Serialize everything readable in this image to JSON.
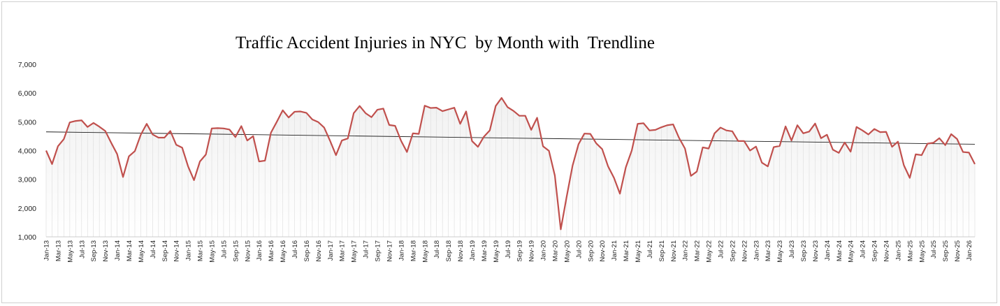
{
  "chart_data": {
    "type": "line",
    "title": "Traffic Accident Injuries in NYC  by Month with  Trendline",
    "xlabel": "",
    "ylabel": "",
    "ylim": [
      1000,
      7000
    ],
    "yticks": [
      "1,000",
      "2,000",
      "3,000",
      "4,000",
      "5,000",
      "6,000",
      "7,000"
    ],
    "x_start": "Jan-13",
    "x_end": "Jan-26",
    "xtick_labels": [
      "Jan-13",
      "Mar-13",
      "May-13",
      "Jul-13",
      "Sep-13",
      "Nov-13",
      "Jan-14",
      "Mar-14",
      "May-14",
      "Jul-14",
      "Sep-14",
      "Nov-14",
      "Jan-15",
      "Mar-15",
      "May-15",
      "Jul-15",
      "Sep-15",
      "Nov-15",
      "Jan-16",
      "Mar-16",
      "May-16",
      "Jul-16",
      "Sep-16",
      "Nov-16",
      "Jan-17",
      "Mar-17",
      "May-17",
      "Jul-17",
      "Sep-17",
      "Nov-17",
      "Jan-18",
      "Mar-18",
      "May-18",
      "Jul-18",
      "Sep-18",
      "Nov-18",
      "Jan-19",
      "Mar-19",
      "May-19",
      "Jul-19",
      "Sep-19",
      "Nov-19",
      "Jan-20",
      "Mar-20",
      "May-20",
      "Jul-20",
      "Sep-20",
      "Nov-20",
      "Jan-21",
      "Mar-21",
      "May-21",
      "Jul-21",
      "Sep-21",
      "Nov-21",
      "Jan-22",
      "Mar-22",
      "May-22",
      "Jul-22",
      "Sep-22",
      "Nov-22",
      "Jan-23",
      "Mar-23",
      "May-23",
      "Jul-23",
      "Sep-23",
      "Nov-23",
      "Jan-24",
      "Mar-24",
      "May-24",
      "Jul-24",
      "Sep-24",
      "Nov-24",
      "Jan-25",
      "Mar-25",
      "May-25",
      "Jul-25",
      "Sep-25",
      "Nov-25",
      "Jan-26"
    ],
    "grid": "vertical-per-month",
    "legend": "none",
    "series": [
      {
        "values": [
          4000,
          3530,
          4150,
          4400,
          4980,
          5030,
          5050,
          4820,
          4960,
          4830,
          4680,
          4270,
          3880,
          3080,
          3800,
          3980,
          4550,
          4930,
          4560,
          4450,
          4450,
          4680,
          4200,
          4100,
          3450,
          2970,
          3620,
          3860,
          4770,
          4780,
          4770,
          4730,
          4470,
          4850,
          4350,
          4500,
          3620,
          3650,
          4620,
          5000,
          5400,
          5150,
          5350,
          5360,
          5310,
          5080,
          4990,
          4800,
          4340,
          3840,
          4350,
          4420,
          5300,
          5550,
          5300,
          5160,
          5420,
          5460,
          4890,
          4860,
          4340,
          3950,
          4600,
          4580,
          5560,
          5480,
          5490,
          5370,
          5430,
          5490,
          4930,
          5360,
          4330,
          4130,
          4480,
          4700,
          5550,
          5830,
          5510,
          5380,
          5210,
          5210,
          4720,
          5140,
          4150,
          3990,
          3130,
          1260,
          2400,
          3480,
          4220,
          4590,
          4580,
          4250,
          4050,
          3450,
          3050,
          2500,
          3420,
          4000,
          4930,
          4950,
          4700,
          4720,
          4810,
          4880,
          4910,
          4440,
          4070,
          3120,
          3270,
          4110,
          4070,
          4600,
          4800,
          4700,
          4670,
          4330,
          4330,
          4000,
          4140,
          3580,
          3450,
          4120,
          4160,
          4840,
          4350,
          4880,
          4600,
          4660,
          4940,
          4430,
          4550,
          4030,
          3920,
          4280,
          3960,
          4820,
          4700,
          4560,
          4750,
          4640,
          4650,
          4130,
          4310,
          3490,
          3050,
          3870,
          3840,
          4240,
          4270,
          4430,
          4190,
          4570,
          4400,
          3950,
          3930,
          3530
        ],
        "color": "#c0504d"
      },
      {
        "values": [
          4650,
          4220
        ],
        "color": "#1f1f1f"
      }
    ]
  }
}
